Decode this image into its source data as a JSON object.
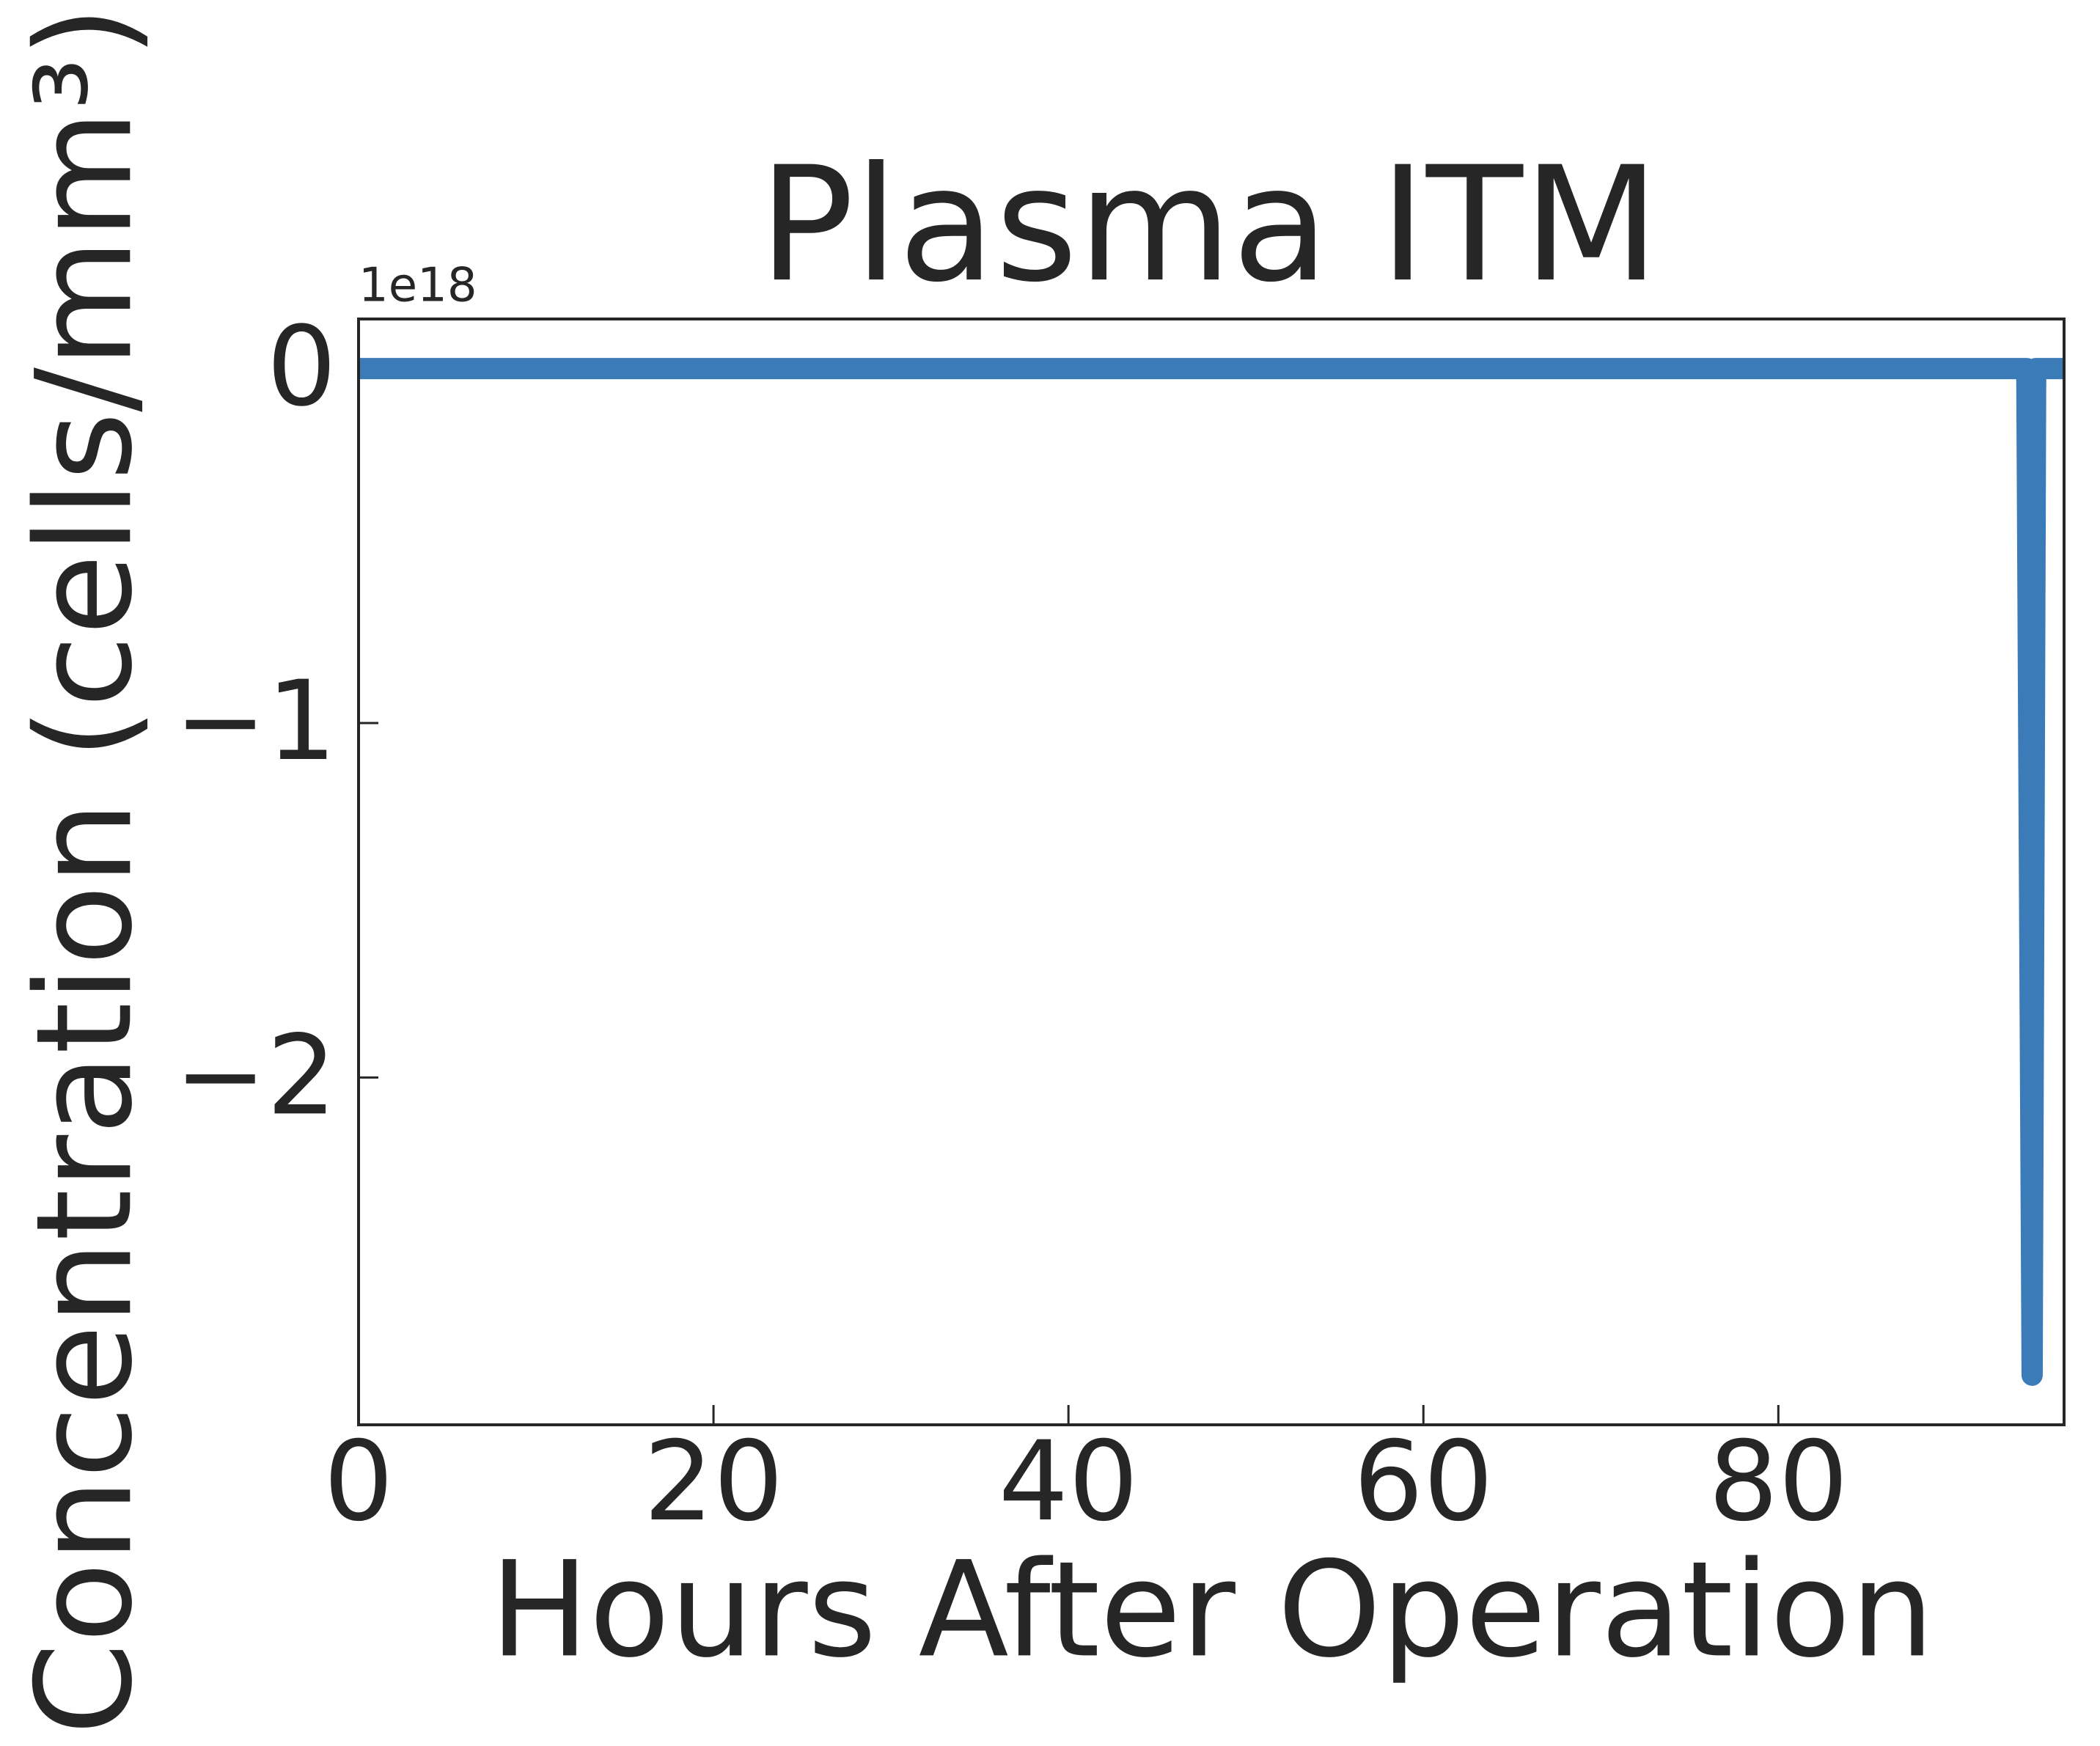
{
  "chart_data": {
    "type": "line",
    "title": "Plasma ITM",
    "x_label": "Hours After Operation",
    "y_label": "Concentration (cells/mm³)",
    "y_offset_label": "1e18",
    "x": [
      0,
      94,
      94.3,
      94.5,
      96
    ],
    "series": [
      {
        "color": "#3b7bb8",
        "values": [
          0,
          0,
          -2.84,
          0,
          0
        ]
      }
    ],
    "xlim": [
      0,
      96.1
    ],
    "ylim": [
      -2.98,
      0.14
    ],
    "xticks": [
      0,
      20,
      40,
      60,
      80
    ],
    "yticks": [
      {
        "value": -2,
        "label": "−2"
      },
      {
        "value": -1,
        "label": "−1"
      },
      0
    ],
    "grid": false
  }
}
